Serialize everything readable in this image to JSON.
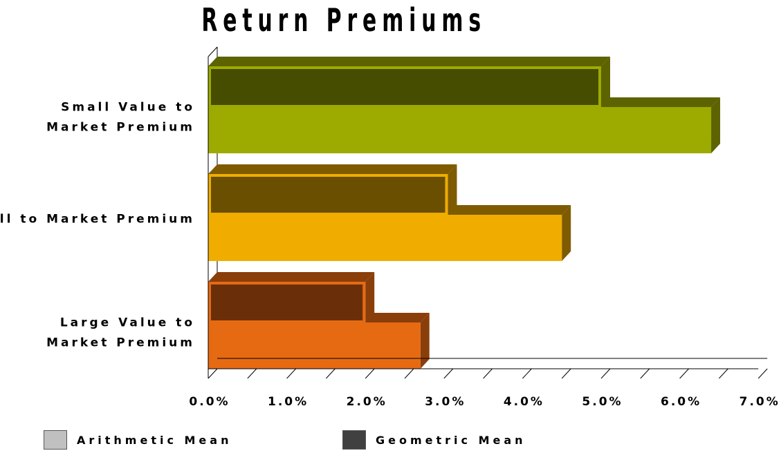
{
  "chart_data": {
    "type": "bar",
    "orientation": "horizontal",
    "title": "Return Premiums",
    "categories": [
      "Small Value to\nMarket Premium",
      "Small to Market Premium",
      "Large Value to\nMarket Premium"
    ],
    "series": [
      {
        "name": "Arithmetic Mean",
        "values": [
          6.4,
          4.5,
          2.7
        ]
      },
      {
        "name": "Geometric Mean",
        "values": [
          5.0,
          3.05,
          2.0
        ]
      }
    ],
    "xlim": [
      0,
      7
    ],
    "x_ticks": [
      "0.0%",
      "1.0%",
      "2.0%",
      "3.0%",
      "4.0%",
      "5.0%",
      "6.0%",
      "7.0%"
    ],
    "colors": {
      "arithmetic": [
        "#9dab00",
        "#f0ad00",
        "#e66a12"
      ],
      "arithmetic_side": [
        "#5d6300",
        "#7e5b00",
        "#8a3e0a"
      ],
      "geometric": [
        "#464c00",
        "#6b4f00",
        "#6a2f09"
      ],
      "geometric_border": [
        "#9dab00",
        "#f0ad00",
        "#e66a12"
      ]
    },
    "legend_position": "bottom",
    "legend": [
      {
        "label": "Arithmetic Mean",
        "color": "#c0c0c0"
      },
      {
        "label": "Geometric Mean",
        "color": "#404040"
      }
    ]
  }
}
